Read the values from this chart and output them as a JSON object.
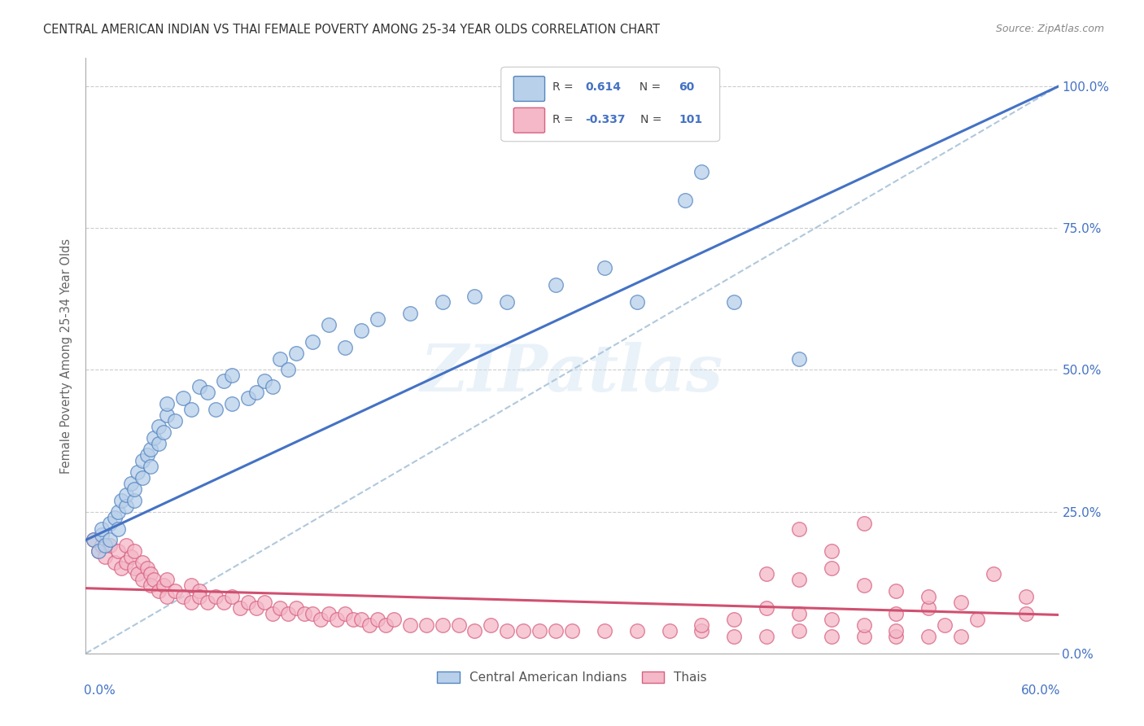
{
  "title": "CENTRAL AMERICAN INDIAN VS THAI FEMALE POVERTY AMONG 25-34 YEAR OLDS CORRELATION CHART",
  "source": "Source: ZipAtlas.com",
  "ylabel": "Female Poverty Among 25-34 Year Olds",
  "yaxis_labels": [
    "0.0%",
    "25.0%",
    "50.0%",
    "75.0%",
    "100.0%"
  ],
  "yaxis_values": [
    0.0,
    0.25,
    0.5,
    0.75,
    1.0
  ],
  "xlim": [
    0.0,
    0.6
  ],
  "ylim": [
    0.0,
    1.05
  ],
  "blue_R": "0.614",
  "blue_N": "60",
  "pink_R": "-0.337",
  "pink_N": "101",
  "blue_fill": "#b8d0ea",
  "blue_edge": "#5585c0",
  "pink_fill": "#f4b8c8",
  "pink_edge": "#d86080",
  "blue_line": "#4472c4",
  "pink_line": "#d05070",
  "diag_color": "#b0c8dc",
  "text_blue": "#4472c4",
  "watermark": "ZIPatlas",
  "blue_x": [
    0.005,
    0.008,
    0.01,
    0.01,
    0.012,
    0.015,
    0.015,
    0.018,
    0.02,
    0.02,
    0.022,
    0.025,
    0.025,
    0.028,
    0.03,
    0.03,
    0.032,
    0.035,
    0.035,
    0.038,
    0.04,
    0.04,
    0.042,
    0.045,
    0.045,
    0.048,
    0.05,
    0.05,
    0.055,
    0.06,
    0.065,
    0.07,
    0.075,
    0.08,
    0.085,
    0.09,
    0.09,
    0.1,
    0.105,
    0.11,
    0.115,
    0.12,
    0.125,
    0.13,
    0.14,
    0.15,
    0.16,
    0.17,
    0.18,
    0.2,
    0.22,
    0.24,
    0.26,
    0.29,
    0.32,
    0.34,
    0.37,
    0.38,
    0.4,
    0.44
  ],
  "blue_y": [
    0.2,
    0.18,
    0.21,
    0.22,
    0.19,
    0.2,
    0.23,
    0.24,
    0.22,
    0.25,
    0.27,
    0.26,
    0.28,
    0.3,
    0.27,
    0.29,
    0.32,
    0.31,
    0.34,
    0.35,
    0.33,
    0.36,
    0.38,
    0.37,
    0.4,
    0.39,
    0.42,
    0.44,
    0.41,
    0.45,
    0.43,
    0.47,
    0.46,
    0.43,
    0.48,
    0.49,
    0.44,
    0.45,
    0.46,
    0.48,
    0.47,
    0.52,
    0.5,
    0.53,
    0.55,
    0.58,
    0.54,
    0.57,
    0.59,
    0.6,
    0.62,
    0.63,
    0.62,
    0.65,
    0.68,
    0.62,
    0.8,
    0.85,
    0.62,
    0.52
  ],
  "pink_x": [
    0.005,
    0.008,
    0.01,
    0.012,
    0.015,
    0.018,
    0.02,
    0.022,
    0.025,
    0.025,
    0.028,
    0.03,
    0.03,
    0.032,
    0.035,
    0.035,
    0.038,
    0.04,
    0.04,
    0.042,
    0.045,
    0.048,
    0.05,
    0.05,
    0.055,
    0.06,
    0.065,
    0.065,
    0.07,
    0.07,
    0.075,
    0.08,
    0.085,
    0.09,
    0.095,
    0.1,
    0.105,
    0.11,
    0.115,
    0.12,
    0.125,
    0.13,
    0.135,
    0.14,
    0.145,
    0.15,
    0.155,
    0.16,
    0.165,
    0.17,
    0.175,
    0.18,
    0.185,
    0.19,
    0.2,
    0.21,
    0.22,
    0.23,
    0.24,
    0.25,
    0.26,
    0.27,
    0.28,
    0.29,
    0.3,
    0.32,
    0.34,
    0.36,
    0.38,
    0.4,
    0.42,
    0.44,
    0.46,
    0.48,
    0.5,
    0.52,
    0.54,
    0.42,
    0.44,
    0.46,
    0.48,
    0.5,
    0.52,
    0.44,
    0.46,
    0.48,
    0.5,
    0.52,
    0.54,
    0.56,
    0.58,
    0.58,
    0.55,
    0.53,
    0.5,
    0.48,
    0.46,
    0.44,
    0.42,
    0.4,
    0.38
  ],
  "pink_y": [
    0.2,
    0.18,
    0.19,
    0.17,
    0.19,
    0.16,
    0.18,
    0.15,
    0.19,
    0.16,
    0.17,
    0.15,
    0.18,
    0.14,
    0.16,
    0.13,
    0.15,
    0.14,
    0.12,
    0.13,
    0.11,
    0.12,
    0.1,
    0.13,
    0.11,
    0.1,
    0.12,
    0.09,
    0.11,
    0.1,
    0.09,
    0.1,
    0.09,
    0.1,
    0.08,
    0.09,
    0.08,
    0.09,
    0.07,
    0.08,
    0.07,
    0.08,
    0.07,
    0.07,
    0.06,
    0.07,
    0.06,
    0.07,
    0.06,
    0.06,
    0.05,
    0.06,
    0.05,
    0.06,
    0.05,
    0.05,
    0.05,
    0.05,
    0.04,
    0.05,
    0.04,
    0.04,
    0.04,
    0.04,
    0.04,
    0.04,
    0.04,
    0.04,
    0.04,
    0.03,
    0.03,
    0.04,
    0.03,
    0.03,
    0.03,
    0.03,
    0.03,
    0.14,
    0.13,
    0.15,
    0.12,
    0.07,
    0.08,
    0.22,
    0.18,
    0.23,
    0.11,
    0.1,
    0.09,
    0.14,
    0.07,
    0.1,
    0.06,
    0.05,
    0.04,
    0.05,
    0.06,
    0.07,
    0.08,
    0.06,
    0.05
  ],
  "blue_line_x": [
    0.0,
    0.6
  ],
  "blue_line_y": [
    0.2,
    1.0
  ],
  "pink_line_x": [
    0.0,
    0.6
  ],
  "pink_line_y": [
    0.115,
    0.068
  ],
  "diag_line_x": [
    0.0,
    0.6
  ],
  "diag_line_y": [
    0.0,
    1.0
  ],
  "bg_color": "#ffffff",
  "grid_color": "#cccccc",
  "spine_color": "#aaaaaa"
}
